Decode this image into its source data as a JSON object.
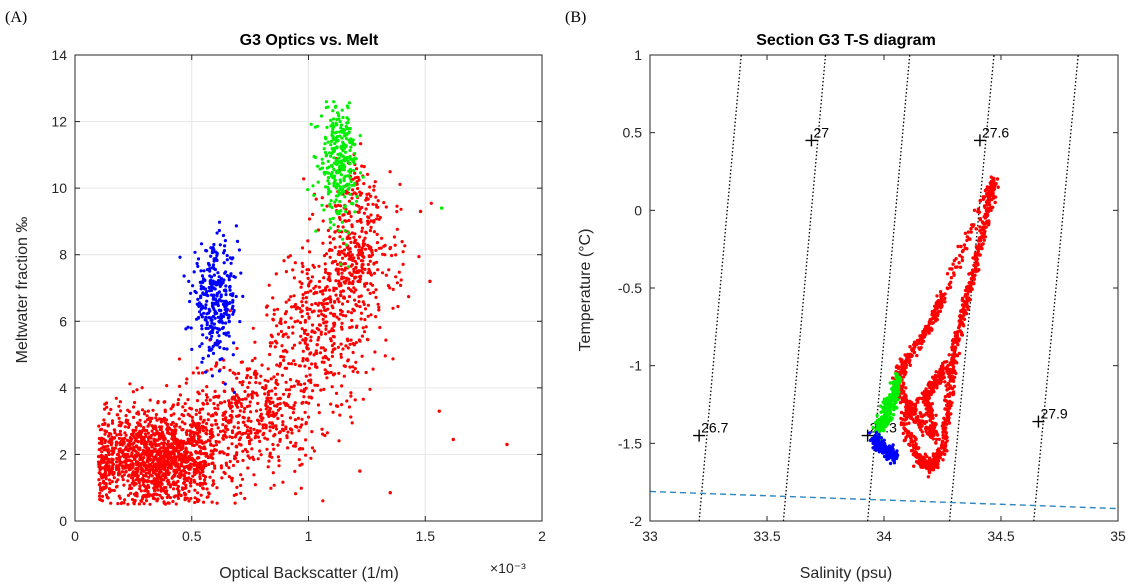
{
  "panels": {
    "a_label": "(A)",
    "b_label": "(B)"
  },
  "chart_data": [
    {
      "type": "scatter",
      "title": "G3 Optics vs. Melt",
      "xlabel": "Optical Backscatter (1/m)",
      "ylabel": "Meltwater fraction ‰",
      "x_multiplier": "×10⁻³",
      "xlim": [
        0,
        2
      ],
      "ylim": [
        0,
        14
      ],
      "xticks": [
        0,
        0.5,
        1,
        1.5,
        2
      ],
      "xtick_labels": [
        "0",
        "0.5",
        "1",
        "1.5",
        "2"
      ],
      "yticks": [
        0,
        2,
        4,
        6,
        8,
        10,
        12,
        14
      ],
      "ytick_labels": [
        "0",
        "2",
        "4",
        "6",
        "8",
        "10",
        "12",
        "14"
      ],
      "grid": true,
      "clusters": [
        {
          "color": "#ff0000",
          "cx": 0.35,
          "cy": 1.9,
          "sx": 0.15,
          "sy": 0.7,
          "n": 1400
        },
        {
          "color": "#ff0000",
          "cx": 0.75,
          "cy": 3.2,
          "sx": 0.15,
          "sy": 0.9,
          "n": 500
        },
        {
          "color": "#ff0000",
          "cx": 1.05,
          "cy": 5.8,
          "sx": 0.12,
          "sy": 1.1,
          "n": 380
        },
        {
          "color": "#ff0000",
          "cx": 1.2,
          "cy": 7.8,
          "sx": 0.09,
          "sy": 0.8,
          "n": 320
        },
        {
          "color": "#ff0000",
          "cx": 1.2,
          "cy": 9.8,
          "sx": 0.08,
          "sy": 0.6,
          "n": 90
        },
        {
          "color": "#0000ff",
          "cx": 0.6,
          "cy": 6.6,
          "sx": 0.05,
          "sy": 0.8,
          "n": 330
        },
        {
          "color": "#00ee00",
          "cx": 1.13,
          "cy": 10.8,
          "sx": 0.04,
          "sy": 0.9,
          "n": 300
        }
      ],
      "outliers": [
        {
          "x": 1.56,
          "y": 3.3,
          "color": "#ff0000"
        },
        {
          "x": 1.62,
          "y": 2.45,
          "color": "#ff0000"
        },
        {
          "x": 1.85,
          "y": 2.3,
          "color": "#ff0000"
        },
        {
          "x": 1.35,
          "y": 0.85,
          "color": "#ff0000"
        },
        {
          "x": 1.22,
          "y": 1.5,
          "color": "#ff0000"
        },
        {
          "x": 1.52,
          "y": 7.2,
          "color": "#ff0000"
        },
        {
          "x": 1.48,
          "y": 9.3,
          "color": "#ff0000"
        },
        {
          "x": 1.57,
          "y": 9.4,
          "color": "#00ee00"
        }
      ]
    },
    {
      "type": "scatter",
      "title": "Section G3 T-S diagram",
      "xlabel": "Salinity (psu)",
      "ylabel": "Temperature (°C)",
      "xlim": [
        33,
        35
      ],
      "ylim": [
        -2,
        1
      ],
      "xticks": [
        33,
        33.5,
        34,
        34.5,
        35
      ],
      "xtick_labels": [
        "33",
        "33.5",
        "34",
        "34.5",
        "35"
      ],
      "yticks": [
        -2,
        -1.5,
        -1,
        -0.5,
        0,
        0.5,
        1
      ],
      "ytick_labels": [
        "-2",
        "-1.5",
        "-1",
        "-0.5",
        "0",
        "0.5",
        "1"
      ],
      "grid": false,
      "density_contours": [
        {
          "label": "26.7",
          "s_bottom": 33.21,
          "s_top": 33.39,
          "label_s": 33.21,
          "label_t": -1.45
        },
        {
          "label": "27",
          "s_bottom": 33.57,
          "s_top": 33.75,
          "label_s": 33.69,
          "label_t": 0.45
        },
        {
          "label": "27.3",
          "s_bottom": 33.93,
          "s_top": 34.11,
          "label_s": 33.93,
          "label_t": -1.45
        },
        {
          "label": "27.6",
          "s_bottom": 34.28,
          "s_top": 34.47,
          "label_s": 34.41,
          "label_t": 0.45
        },
        {
          "label": "27.9",
          "s_bottom": 34.64,
          "s_top": 34.83,
          "label_s": 34.66,
          "label_t": -1.36
        }
      ],
      "freezing_line": {
        "s_start": 33,
        "t_start": -1.81,
        "s_end": 35,
        "t_end": -1.92,
        "color": "#2e86c1"
      },
      "series": [
        {
          "color": "#ff0000",
          "points": [
            [
              34.08,
              -1.35
            ],
            [
              34.15,
              -1.6
            ],
            [
              34.2,
              -1.65
            ],
            [
              34.25,
              -1.55
            ],
            [
              34.28,
              -1.2
            ],
            [
              34.3,
              -0.9
            ],
            [
              34.35,
              -0.6
            ],
            [
              34.4,
              -0.3
            ],
            [
              34.45,
              0.05
            ],
            [
              34.47,
              0.2
            ],
            [
              34.25,
              -0.55
            ],
            [
              34.2,
              -0.75
            ],
            [
              34.1,
              -0.95
            ],
            [
              34.05,
              -1.1
            ],
            [
              34.12,
              -1.3
            ],
            [
              34.22,
              -1.45
            ],
            [
              34.18,
              -1.2
            ],
            [
              34.27,
              -1.0
            ]
          ]
        },
        {
          "color": "#00ee00",
          "points": [
            [
              33.97,
              -1.42
            ],
            [
              34.0,
              -1.3
            ],
            [
              34.03,
              -1.2
            ],
            [
              34.06,
              -1.08
            ],
            [
              34.04,
              -1.25
            ],
            [
              34.01,
              -1.36
            ]
          ]
        },
        {
          "color": "#0000ff",
          "points": [
            [
              33.96,
              -1.48
            ],
            [
              33.99,
              -1.53
            ],
            [
              34.02,
              -1.57
            ],
            [
              34.05,
              -1.58
            ],
            [
              33.98,
              -1.5
            ]
          ]
        }
      ]
    }
  ]
}
